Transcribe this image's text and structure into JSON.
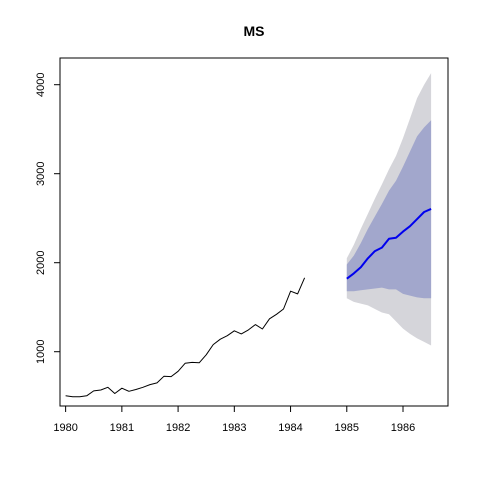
{
  "chart_data": {
    "type": "line",
    "title": "MS",
    "xlabel": "",
    "ylabel": "",
    "xlim": [
      1979.9,
      1986.8
    ],
    "ylim": [
      390,
      4300
    ],
    "x_ticks": [
      1980,
      1981,
      1982,
      1983,
      1984,
      1985,
      1986
    ],
    "x_tick_labels": [
      "1980",
      "1981",
      "1982",
      "1983",
      "1984",
      "1985",
      "1986"
    ],
    "y_ticks": [
      1000,
      2000,
      3000,
      4000
    ],
    "y_tick_labels": [
      "1000",
      "2000",
      "3000",
      "4000"
    ],
    "grid": false,
    "series": [
      {
        "role": "observed",
        "color": "#000000",
        "x": [
          1980.0,
          1980.125,
          1980.25,
          1980.375,
          1980.5,
          1980.625,
          1980.75,
          1980.875,
          1981.0,
          1981.125,
          1981.25,
          1981.375,
          1981.5,
          1981.625,
          1981.75,
          1981.875,
          1982.0,
          1982.125,
          1982.25,
          1982.375,
          1982.5,
          1982.625,
          1982.75,
          1982.875,
          1983.0,
          1983.125,
          1983.25,
          1983.375,
          1983.5,
          1983.625,
          1983.75,
          1983.875,
          1984.0,
          1984.125,
          1984.25,
          1984.375,
          1984.5,
          1984.625,
          1984.75,
          1984.875
        ],
        "y": [
          505,
          495,
          495,
          505,
          560,
          570,
          600,
          530,
          590,
          555,
          575,
          600,
          630,
          650,
          725,
          720,
          780,
          870,
          880,
          875,
          965,
          1080,
          1140,
          1180,
          1235,
          1200,
          1245,
          1305,
          1255,
          1370,
          1420,
          1480,
          1680,
          1650,
          1830,
          null,
          null,
          null,
          null,
          null
        ]
      },
      {
        "role": "forecast",
        "color": "#0000ee",
        "x": [
          1985.0,
          1985.125,
          1985.25,
          1985.375,
          1985.5,
          1985.625,
          1985.75,
          1985.875,
          1986.0,
          1986.125,
          1986.25,
          1986.375,
          1986.5,
          1986.625
        ],
        "y": [
          1820,
          1880,
          1950,
          2050,
          2130,
          2170,
          2270,
          2280,
          2350,
          2410,
          2490,
          2570,
          2605,
          null
        ]
      }
    ],
    "intervals": [
      {
        "level": "outer",
        "color": "#d5d5da",
        "x": [
          1985.0,
          1985.125,
          1985.25,
          1985.375,
          1985.5,
          1985.625,
          1985.75,
          1985.875,
          1986.0,
          1986.125,
          1986.25,
          1986.375,
          1986.5
        ],
        "lower": [
          1600,
          1560,
          1540,
          1520,
          1480,
          1440,
          1420,
          1340,
          1260,
          1200,
          1150,
          1110,
          1070
        ],
        "upper": [
          2050,
          2200,
          2380,
          2550,
          2720,
          2880,
          3050,
          3200,
          3400,
          3620,
          3850,
          4000,
          4130
        ]
      },
      {
        "level": "inner",
        "color": "#a2a7cc",
        "x": [
          1985.0,
          1985.125,
          1985.25,
          1985.375,
          1985.5,
          1985.625,
          1985.75,
          1985.875,
          1986.0,
          1986.125,
          1986.25,
          1986.375,
          1986.5
        ],
        "lower": [
          1680,
          1680,
          1690,
          1700,
          1710,
          1720,
          1700,
          1700,
          1650,
          1630,
          1610,
          1600,
          1600
        ],
        "upper": [
          1980,
          2080,
          2220,
          2380,
          2520,
          2660,
          2810,
          2920,
          3080,
          3250,
          3420,
          3520,
          3600
        ]
      }
    ]
  }
}
